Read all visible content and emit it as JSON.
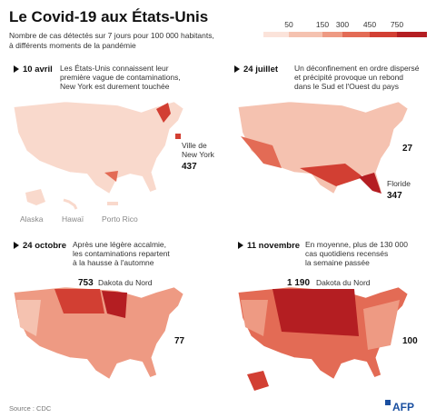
{
  "header": {
    "title": "Le Covid-19 aux États-Unis",
    "subtitle_lines": [
      "Nombre de cas détectés sur 7 jours pour 100 000 habitants,",
      "à différents moments de la pandémie"
    ]
  },
  "legend": {
    "ticks": [
      "50",
      "150",
      "300",
      "450",
      "750"
    ]
  },
  "panels": [
    {
      "date": "10 avril",
      "text_lines": [
        "Les États-Unis connaissent leur",
        "première vague de contaminations,",
        "New York est durement touchée"
      ],
      "callouts": [
        {
          "label_lines": [
            "Ville de",
            "New York"
          ],
          "value": "437"
        }
      ],
      "territories": [
        "Alaska",
        "Hawaï",
        "Porto Rico"
      ]
    },
    {
      "date": "24 juillet",
      "text_lines": [
        "Un déconfinement en ordre dispersé",
        "et précipité provoque un rebond",
        "dans le Sud et l'Ouest du pays"
      ],
      "callouts": [
        {
          "value": "27"
        },
        {
          "label_lines": [
            "Floride"
          ],
          "value": "347"
        }
      ]
    },
    {
      "date": "24 octobre",
      "text_lines": [
        "Après une légère accalmie,",
        "les contaminations repartent",
        "à la hausse à l'automne"
      ],
      "callouts": [
        {
          "value": "753",
          "label_lines": [
            "Dakota du Nord"
          ]
        },
        {
          "value": "77"
        }
      ]
    },
    {
      "date": "11 novembre",
      "text_lines": [
        "En moyenne, plus de 130 000",
        "cas quotidiens recensés",
        "la semaine passée"
      ],
      "callouts": [
        {
          "value": "1 190",
          "label_lines": [
            "Dakota du Nord"
          ]
        },
        {
          "value": "100"
        }
      ]
    }
  ],
  "source": "Source : CDC",
  "logo": "AFP"
}
